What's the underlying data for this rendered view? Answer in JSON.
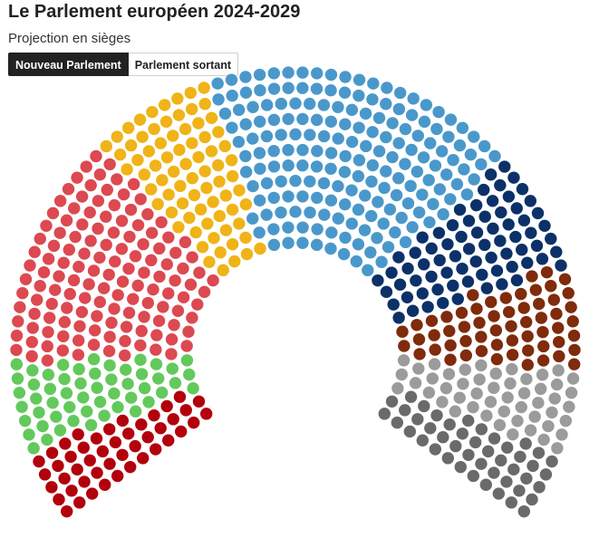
{
  "header": {
    "title": "Le Parlement européen 2024-2029",
    "subtitle": "Projection en sièges"
  },
  "tabs": [
    {
      "label": "Nouveau Parlement",
      "active": true
    },
    {
      "label": "Parlement sortant",
      "active": false
    }
  ],
  "chart_data": {
    "type": "hemicycle",
    "title": "Le Parlement européen 2024-2029",
    "subtitle": "Projection en sièges",
    "total_seats": 720,
    "segments": [
      {
        "seats": 46,
        "color": "#b2000c"
      },
      {
        "seats": 53,
        "color": "#63c95c"
      },
      {
        "seats": 136,
        "color": "#dc4951"
      },
      {
        "seats": 75,
        "color": "#f0b318"
      },
      {
        "seats": 184,
        "color": "#4a98cb"
      },
      {
        "seats": 73,
        "color": "#0c3169"
      },
      {
        "seats": 58,
        "color": "#7f2b0c"
      },
      {
        "seats": 50,
        "color": "#9b9b9b"
      },
      {
        "seats": 45,
        "color": "#6a6a6a"
      }
    ]
  }
}
